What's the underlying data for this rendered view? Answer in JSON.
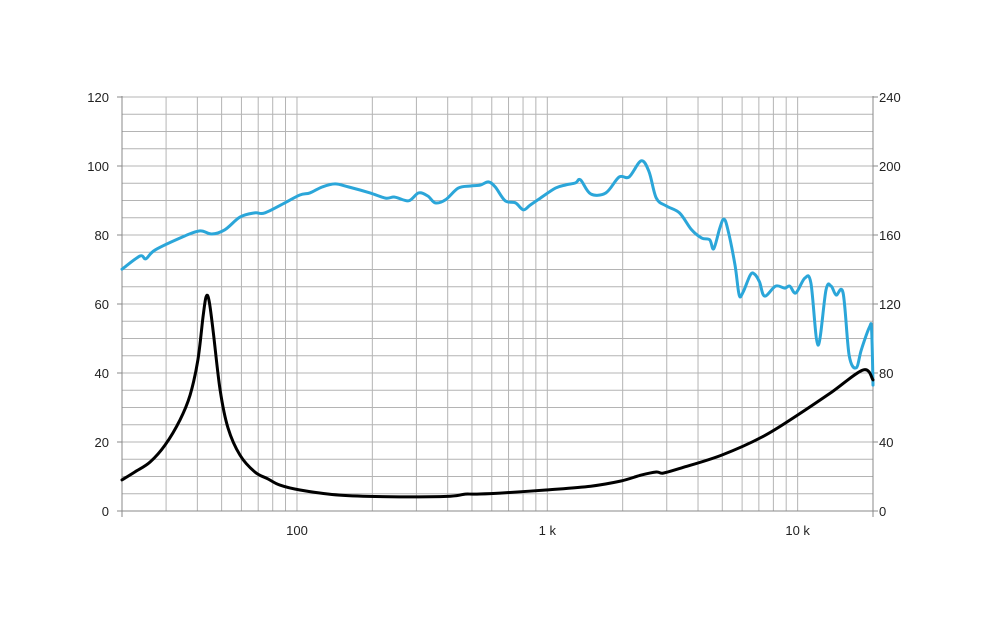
{
  "chart_data": {
    "type": "line",
    "title": "",
    "xlabel": "",
    "ylabel": "",
    "y2label": "",
    "x_scale": "log",
    "xlim": [
      20,
      20000
    ],
    "ylim": [
      0,
      120
    ],
    "y2lim": [
      0,
      240
    ],
    "grid": true,
    "legend": "none",
    "x_tick_labels": [
      {
        "value": 100,
        "label": "100"
      },
      {
        "value": 1000,
        "label": "1 k"
      },
      {
        "value": 10000,
        "label": "10 k"
      }
    ],
    "y_ticks": [
      "0",
      "20",
      "40",
      "60",
      "80",
      "100",
      "120"
    ],
    "y2_ticks": [
      "0",
      "40",
      "80",
      "120",
      "160",
      "200",
      "240"
    ],
    "series": [
      {
        "color": "#2ba6d9",
        "axis": "left",
        "x": [
          20,
          23.6,
          24.9,
          27.2,
          35.6,
          41,
          45.7,
          51.5,
          59.2,
          67.8,
          74.3,
          89.4,
          102.7,
          112.6,
          126,
          142,
          161,
          196,
          226,
          246,
          279,
          306,
          333,
          357,
          392,
          441,
          494,
          541,
          582,
          620,
          679,
          746,
          802,
          855,
          938,
          1078,
          1182,
          1296,
          1357,
          1490,
          1713,
          1935,
          2122,
          2371,
          2550,
          2724,
          2990,
          3374,
          3770,
          4138,
          4454,
          4620,
          4885,
          5075,
          5266,
          5620,
          5840,
          6060,
          6468,
          6717,
          7040,
          7380,
          8165,
          8870,
          9300,
          9830,
          10680,
          11300,
          12060,
          12980,
          13600,
          14240,
          15190,
          16060,
          17140,
          17960,
          19370,
          19740,
          20000
        ],
        "y": [
          70.1,
          73.9,
          73.1,
          75.7,
          79.7,
          81.2,
          80.3,
          81.5,
          85.2,
          86.4,
          86.4,
          89.3,
          91.6,
          92.2,
          93.9,
          94.8,
          93.9,
          92.2,
          90.7,
          91,
          89.9,
          92.2,
          91.3,
          89.3,
          90.2,
          93.6,
          94.2,
          94.5,
          95.4,
          93.9,
          89.9,
          89.3,
          87.3,
          88.7,
          90.7,
          93.6,
          94.5,
          95.1,
          96,
          91.9,
          92.2,
          96.8,
          96.8,
          101.5,
          98.3,
          90.7,
          88.4,
          86.4,
          81.5,
          79.1,
          78.6,
          76,
          82,
          84.6,
          81.5,
          71.3,
          62.6,
          63.5,
          68.4,
          68.7,
          66.4,
          62.3,
          65.2,
          64.6,
          65.2,
          63.2,
          67.5,
          66.1,
          48.1,
          64.1,
          65.2,
          62.6,
          63.2,
          45.2,
          41.5,
          46.7,
          53.3,
          52.5,
          36.5
        ]
      },
      {
        "color": "#000000",
        "axis": "left",
        "x": [
          20,
          22.5,
          25.9,
          29.7,
          34.1,
          37.4,
          40.2,
          42.1,
          43.3,
          44.5,
          46.2,
          49.3,
          53,
          59.2,
          67.9,
          76.6,
          85.5,
          102.8,
          148,
          256,
          410,
          470,
          515,
          648,
          987,
          1490,
          1970,
          2371,
          2724,
          2905,
          3435,
          4975,
          7230,
          9990,
          13700,
          18300,
          20000
        ],
        "y": [
          9,
          11.3,
          14.2,
          19.1,
          26.4,
          33.6,
          43.8,
          56,
          62,
          61.2,
          52.5,
          35.1,
          24.1,
          16.2,
          11.3,
          9.3,
          7.5,
          6.1,
          4.6,
          4.1,
          4.3,
          4.9,
          4.9,
          5.2,
          6.1,
          7.2,
          8.7,
          10.4,
          11.3,
          11,
          12.5,
          16.2,
          21.5,
          27.8,
          34.5,
          40.9,
          38
        ]
      }
    ]
  }
}
